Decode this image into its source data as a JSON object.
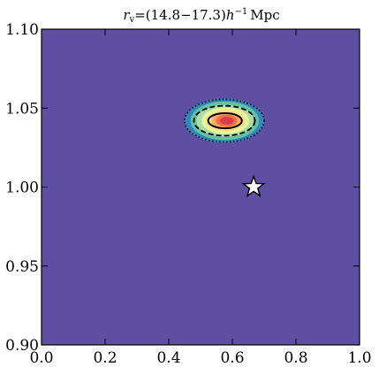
{
  "chart_data": {
    "type": "heatmap",
    "title": {
      "r": "r",
      "sub": "v",
      "range": "=(14.8−17.3)",
      "h": "h",
      "sup": "−1",
      "unit": "Mpc"
    },
    "xlabel": "",
    "ylabel": "",
    "xlim": [
      0.0,
      1.0
    ],
    "ylim": [
      0.9,
      1.1
    ],
    "x_ticks": [
      0.0,
      0.2,
      0.4,
      0.6,
      0.8,
      1.0
    ],
    "x_tick_labels": [
      "0.0",
      "0.2",
      "0.4",
      "0.6",
      "0.8",
      "1.0"
    ],
    "y_ticks": [
      0.9,
      0.95,
      1.0,
      1.05,
      1.1
    ],
    "y_tick_labels": [
      "0.90",
      "0.95",
      "1.00",
      "1.05",
      "1.10"
    ],
    "grid": false,
    "legend": "none",
    "background_color": "#5e4fa2",
    "peak": {
      "x": 0.575,
      "y": 1.042
    },
    "contours": [
      {
        "level": "outer",
        "style": "dotted",
        "center": [
          0.575,
          1.042
        ],
        "radius_x": 0.125,
        "radius_y": 0.0135
      },
      {
        "level": "middle",
        "style": "dashed",
        "center": [
          0.575,
          1.042
        ],
        "radius_x": 0.096,
        "radius_y": 0.0095
      },
      {
        "level": "inner",
        "style": "solid",
        "center": [
          0.577,
          1.042
        ],
        "radius_x": 0.053,
        "radius_y": 0.0048
      }
    ],
    "marker": {
      "shape": "star",
      "x": 0.667,
      "y": 1.0
    },
    "colors": {
      "level_0": "#5e4fa2",
      "level_1": "#3288bd",
      "level_2": "#66c2a5",
      "level_3": "#abdda4",
      "level_4": "#e6f598",
      "level_5": "#fee08b",
      "level_6": "#fdae61",
      "level_7": "#f46d43",
      "level_8": "#d53e4f",
      "contour": "#000000",
      "marker_fill": "#ffffff",
      "marker_edge": "#000000"
    }
  }
}
